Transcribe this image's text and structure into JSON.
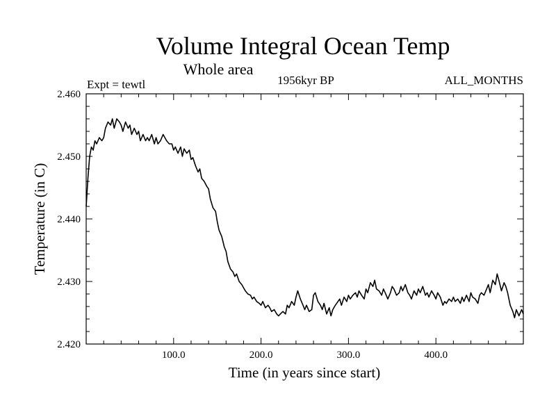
{
  "chart_data": {
    "type": "line",
    "title": "Volume Integral Ocean Temp",
    "subtitle": "Whole area",
    "annotations": {
      "left": "Expt = tewtl",
      "center": "1956kyr BP",
      "right": "ALL_MONTHS"
    },
    "xlabel": "Time (in years since start)",
    "ylabel": "Temperature (in C)",
    "xlim": [
      0,
      500
    ],
    "ylim": [
      2.42,
      2.46
    ],
    "x_ticks": [
      100,
      200,
      300,
      400
    ],
    "x_tick_labels": [
      "100.0",
      "200.0",
      "300.0",
      "400.0"
    ],
    "y_ticks": [
      2.42,
      2.43,
      2.44,
      2.45,
      2.46
    ],
    "y_tick_labels": [
      "2.420",
      "2.430",
      "2.440",
      "2.450",
      "2.460"
    ],
    "grid": false,
    "series": [
      {
        "name": "Temperature",
        "x": [
          0,
          2,
          4,
          6,
          8,
          10,
          12,
          15,
          18,
          20,
          22,
          25,
          28,
          30,
          32,
          35,
          38,
          40,
          42,
          45,
          48,
          50,
          52,
          55,
          58,
          60,
          62,
          65,
          68,
          70,
          72,
          75,
          78,
          80,
          82,
          85,
          88,
          90,
          92,
          95,
          98,
          100,
          102,
          105,
          108,
          110,
          112,
          115,
          118,
          120,
          122,
          125,
          128,
          130,
          132,
          135,
          138,
          140,
          142,
          145,
          148,
          150,
          152,
          155,
          158,
          160,
          162,
          165,
          168,
          170,
          172,
          175,
          178,
          180,
          182,
          185,
          188,
          190,
          192,
          195,
          198,
          200,
          202,
          205,
          208,
          210,
          212,
          215,
          218,
          220,
          222,
          225,
          228,
          230,
          232,
          235,
          238,
          240,
          242,
          245,
          248,
          250,
          252,
          255,
          258,
          260,
          262,
          265,
          268,
          270,
          272,
          275,
          278,
          280,
          282,
          285,
          288,
          290,
          292,
          295,
          298,
          300,
          302,
          305,
          308,
          310,
          312,
          315,
          318,
          320,
          322,
          325,
          328,
          330,
          332,
          335,
          338,
          340,
          342,
          345,
          348,
          350,
          352,
          355,
          358,
          360,
          362,
          365,
          368,
          370,
          372,
          375,
          378,
          380,
          382,
          385,
          388,
          390,
          392,
          395,
          398,
          400,
          402,
          405,
          408,
          410,
          412,
          415,
          418,
          420,
          422,
          425,
          428,
          430,
          432,
          435,
          438,
          440,
          442,
          445,
          448,
          450,
          452,
          455,
          458,
          460,
          462,
          465,
          468,
          470,
          472,
          475,
          478,
          480,
          482,
          485,
          488,
          490,
          492,
          495,
          498,
          500
        ],
        "values": [
          2.442,
          2.4465,
          2.45,
          2.4515,
          2.451,
          2.4525,
          2.452,
          2.453,
          2.4525,
          2.453,
          2.4545,
          2.4555,
          2.455,
          2.456,
          2.4545,
          2.456,
          2.4555,
          2.455,
          2.454,
          2.4555,
          2.4545,
          2.455,
          2.4535,
          2.4545,
          2.4535,
          2.454,
          2.4525,
          2.4535,
          2.4525,
          2.453,
          2.4525,
          2.4535,
          2.452,
          2.453,
          2.452,
          2.4525,
          2.4535,
          2.453,
          2.4525,
          2.452,
          2.452,
          2.451,
          2.4515,
          2.4505,
          2.4515,
          2.45,
          2.4512,
          2.4505,
          2.451,
          2.4495,
          2.4498,
          2.4485,
          2.4475,
          2.448,
          2.4465,
          2.446,
          2.4452,
          2.4448,
          2.4432,
          2.4418,
          2.4412,
          2.4395,
          2.4382,
          2.4372,
          2.4355,
          2.4348,
          2.4332,
          2.432,
          2.4315,
          2.4308,
          2.4312,
          2.43,
          2.4295,
          2.429,
          2.4285,
          2.428,
          2.4278,
          2.4272,
          2.4275,
          2.4268,
          2.4265,
          2.4262,
          2.4268,
          2.4258,
          2.4262,
          2.4258,
          2.4252,
          2.4255,
          2.4248,
          2.4245,
          2.4248,
          2.4252,
          2.4248,
          2.4262,
          2.4258,
          2.4268,
          2.4262,
          2.4275,
          2.4285,
          2.4272,
          2.4262,
          2.4255,
          2.4262,
          2.4252,
          2.4255,
          2.4278,
          2.4282,
          2.4268,
          2.4262,
          2.4255,
          2.4265,
          2.4248,
          2.4258,
          2.4245,
          2.4255,
          2.4262,
          2.4268,
          2.4272,
          2.4262,
          2.4275,
          2.4268,
          2.4278,
          2.4272,
          2.4278,
          2.4282,
          2.4275,
          2.4285,
          2.4278,
          2.4272,
          2.4288,
          2.4282,
          2.4298,
          2.4292,
          2.4302,
          2.4288,
          2.4285,
          2.4278,
          2.4288,
          2.4282,
          2.4272,
          2.4282,
          2.4292,
          2.4288,
          2.4278,
          2.4282,
          2.4292,
          2.4285,
          2.4295,
          2.4282,
          2.4278,
          2.4272,
          2.4285,
          2.4278,
          2.4288,
          2.4282,
          2.4292,
          2.4278,
          2.4282,
          2.4275,
          2.4285,
          2.4278,
          2.4272,
          2.4282,
          2.4275,
          2.4262,
          2.4268,
          2.4265,
          2.4272,
          2.4268,
          2.4275,
          2.4268,
          2.4272,
          2.4265,
          2.4275,
          2.4268,
          2.4278,
          2.4268,
          2.4282,
          2.4275,
          2.4272,
          2.4265,
          2.4278,
          2.4282,
          2.4278,
          2.4288,
          2.4295,
          2.4282,
          2.4302,
          2.4295,
          2.4312,
          2.4302,
          2.4285,
          2.4298,
          2.4292,
          2.4282,
          2.4262,
          2.4252,
          2.4242,
          2.4255,
          2.4245,
          2.4255,
          2.4248
        ]
      }
    ]
  }
}
